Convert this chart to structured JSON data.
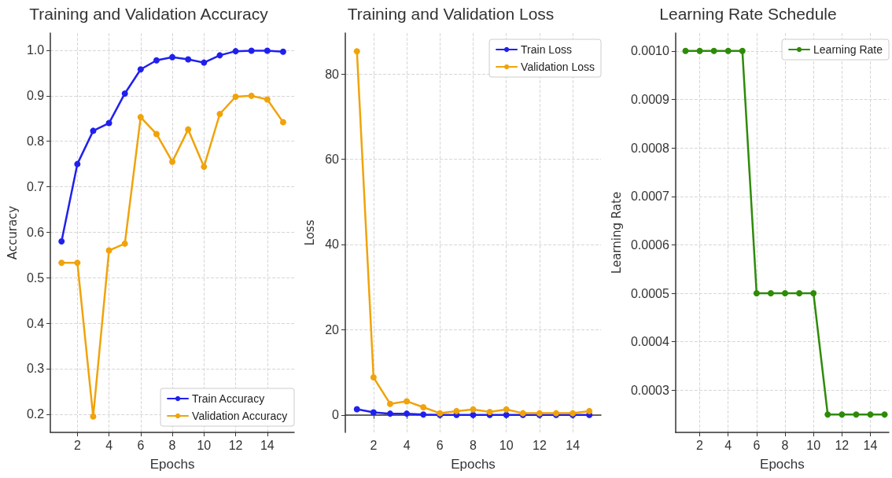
{
  "chart_data": [
    {
      "type": "line",
      "title": "Training and Validation Accuracy",
      "xlabel": "Epochs",
      "ylabel": "Accuracy",
      "x": [
        1,
        2,
        3,
        4,
        5,
        6,
        7,
        8,
        9,
        10,
        11,
        12,
        13,
        14,
        15
      ],
      "series": [
        {
          "name": "Train Accuracy",
          "color": "#2020ee",
          "values": [
            0.58,
            0.75,
            0.823,
            0.84,
            0.905,
            0.958,
            0.978,
            0.985,
            0.98,
            0.973,
            0.989,
            0.998,
            0.999,
            0.999,
            0.997
          ]
        },
        {
          "name": "Validation Accuracy",
          "color": "#f0a30a",
          "values": [
            0.533,
            0.533,
            0.195,
            0.56,
            0.575,
            0.853,
            0.816,
            0.755,
            0.826,
            0.744,
            0.86,
            0.898,
            0.9,
            0.892,
            0.842
          ]
        }
      ],
      "xlim": [
        0.3,
        15.7
      ],
      "xticks": [
        2,
        4,
        6,
        8,
        10,
        12,
        14
      ],
      "ylim": [
        0.16,
        1.038
      ],
      "yticks": [
        {
          "value": 0.2,
          "label": "0.2"
        },
        {
          "value": 0.3,
          "label": "0.3"
        },
        {
          "value": 0.4,
          "label": "0.4"
        },
        {
          "value": 0.5,
          "label": "0.5"
        },
        {
          "value": 0.6,
          "label": "0.6"
        },
        {
          "value": 0.7,
          "label": "0.7"
        },
        {
          "value": 0.8,
          "label": "0.8"
        },
        {
          "value": 0.9,
          "label": "0.9"
        },
        {
          "value": 1,
          "label": "1.0"
        }
      ],
      "grid": true,
      "legend": "bottom right",
      "marker": "circle",
      "line_style": "solid"
    },
    {
      "type": "line",
      "title": "Training and Validation Loss",
      "xlabel": "Epochs",
      "ylabel": "Loss",
      "x": [
        1,
        2,
        3,
        4,
        5,
        6,
        7,
        8,
        9,
        10,
        11,
        12,
        13,
        14,
        15
      ],
      "series": [
        {
          "name": "Train Loss",
          "color": "#2020ee",
          "values": [
            1.35,
            0.6,
            0.3,
            0.3,
            0.1,
            0,
            0,
            0,
            0,
            0,
            0,
            0,
            0,
            0,
            0
          ]
        },
        {
          "name": "Validation Loss",
          "color": "#f0a30a",
          "values": [
            85.3,
            8.8,
            2.6,
            3.2,
            1.8,
            0.4,
            0.9,
            1.3,
            0.7,
            1.3,
            0.4,
            0.4,
            0.4,
            0.4,
            0.9
          ]
        }
      ],
      "xlim": [
        0.3,
        15.7
      ],
      "xticks": [
        2,
        4,
        6,
        8,
        10,
        12,
        14
      ],
      "ylim": [
        -4.1,
        89.6
      ],
      "yticks": [
        0,
        20,
        40,
        60,
        80
      ],
      "grid": true,
      "legend": "top right",
      "marker": "circle",
      "line_style": "solid"
    },
    {
      "type": "line",
      "title": "Learning Rate Schedule",
      "xlabel": "Epochs",
      "ylabel": "Learning Rate",
      "x": [
        1,
        2,
        3,
        4,
        5,
        6,
        7,
        8,
        9,
        10,
        11,
        12,
        13,
        14,
        15
      ],
      "series": [
        {
          "name": "Learning Rate",
          "color": "#2e8b08",
          "values": [
            0.001,
            0.001,
            0.001,
            0.001,
            0.001,
            0.0005,
            0.0005,
            0.0005,
            0.0005,
            0.0005,
            0.00025,
            0.00025,
            0.00025,
            0.00025,
            0.00025
          ]
        }
      ],
      "xlim": [
        0.3,
        15.3
      ],
      "xticks": [
        2,
        4,
        6,
        8,
        10,
        12,
        14
      ],
      "ylim": [
        0.000213,
        0.001037
      ],
      "yticks": [
        {
          "value": 0.0003,
          "label": "0.0003"
        },
        {
          "value": 0.0004,
          "label": "0.0004"
        },
        {
          "value": 0.0005,
          "label": "0.0005"
        },
        {
          "value": 0.0006,
          "label": "0.0006"
        },
        {
          "value": 0.0007,
          "label": "0.0007"
        },
        {
          "value": 0.0008,
          "label": "0.0008"
        },
        {
          "value": 0.0009,
          "label": "0.0009"
        },
        {
          "value": 0.001,
          "label": "0.0010"
        }
      ],
      "grid": true,
      "legend": "top right",
      "marker": "circle",
      "line_style": "solid"
    }
  ]
}
